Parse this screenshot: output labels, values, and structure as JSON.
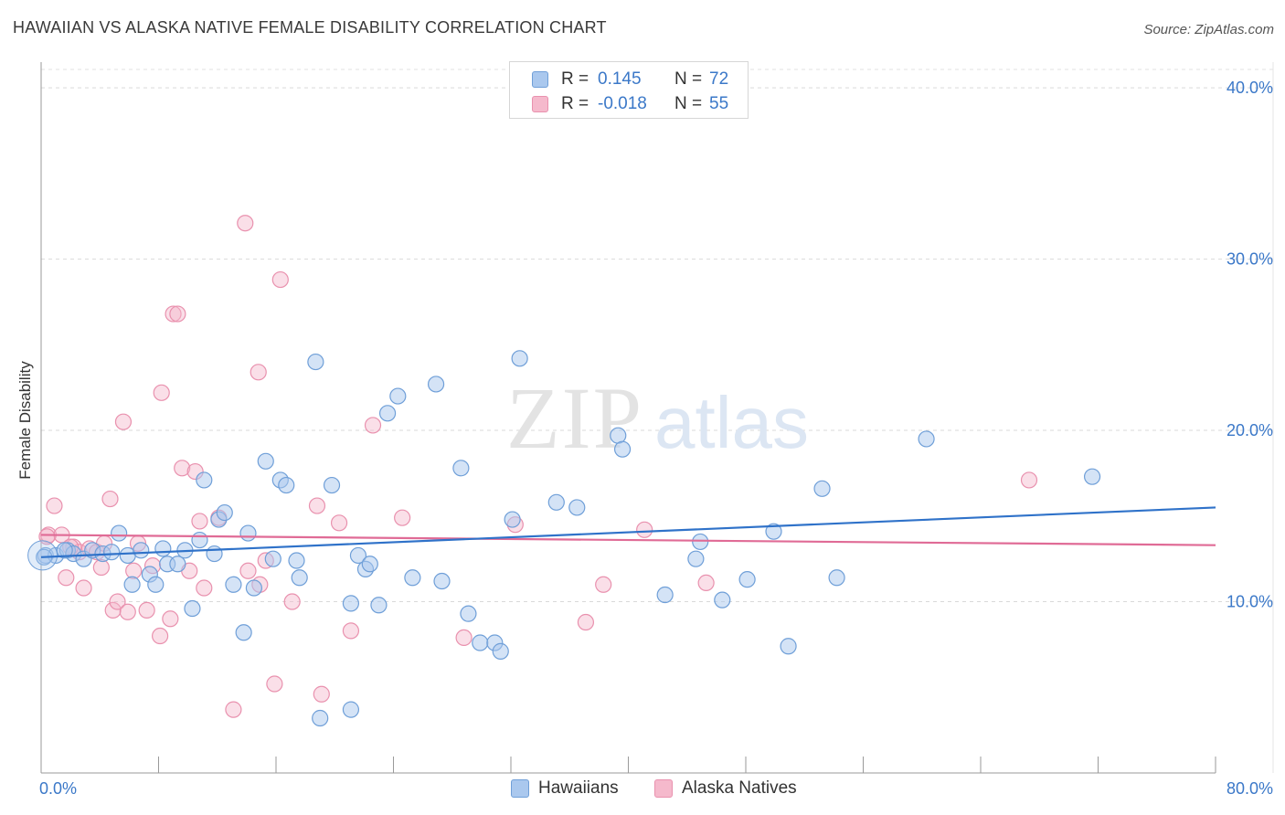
{
  "header": {
    "title": "HAWAIIAN VS ALASKA NATIVE FEMALE DISABILITY CORRELATION CHART",
    "source": "Source: ZipAtlas.com"
  },
  "legend": {
    "rows": [
      {
        "r_label": "R =",
        "r_value": "0.145",
        "n_label": "N =",
        "n_value": "72"
      },
      {
        "r_label": "R =",
        "r_value": "-0.018",
        "n_label": "N =",
        "n_value": "55"
      }
    ]
  },
  "bottom_legend": {
    "series1": "Hawaiians",
    "series2": "Alaska Natives"
  },
  "watermark": {
    "part1": "ZIP",
    "part2": "atlas"
  },
  "colors": {
    "series1_fill": "#aac8ee",
    "series1_stroke": "#6f9fd8",
    "series1_line": "#2f72c9",
    "series2_fill": "#f5b9cc",
    "series2_stroke": "#e991ae",
    "series2_line": "#e06b96",
    "tick_label": "#3b78c8"
  },
  "chart_data": {
    "type": "scatter",
    "title": "HAWAIIAN VS ALASKA NATIVE FEMALE DISABILITY CORRELATION CHART",
    "xlabel": "",
    "ylabel": "Female Disability",
    "xlim": [
      0,
      80
    ],
    "ylim": [
      0,
      41.5
    ],
    "x_tick_labels": [
      "0.0%",
      "80.0%"
    ],
    "y_ticks": [
      10,
      20,
      30,
      40
    ],
    "y_tick_labels": [
      "10.0%",
      "20.0%",
      "30.0%",
      "40.0%"
    ],
    "grid": "horizontal dashed",
    "legend_placement": "top-center",
    "series": [
      {
        "name": "Hawaiians",
        "r": 0.145,
        "n": 72,
        "trend": [
          [
            0,
            12.6
          ],
          [
            80,
            15.5
          ]
        ],
        "points": [
          [
            0.3,
            12.7
          ],
          [
            1.0,
            12.7
          ],
          [
            1.8,
            13.0
          ],
          [
            2.2,
            12.8
          ],
          [
            2.9,
            12.5
          ],
          [
            3.5,
            13.0
          ],
          [
            4.2,
            12.8
          ],
          [
            4.8,
            12.9
          ],
          [
            5.3,
            14.0
          ],
          [
            5.9,
            12.7
          ],
          [
            6.2,
            11.0
          ],
          [
            6.8,
            13.0
          ],
          [
            7.4,
            11.6
          ],
          [
            7.8,
            11.0
          ],
          [
            8.3,
            13.1
          ],
          [
            8.6,
            12.2
          ],
          [
            9.3,
            12.2
          ],
          [
            9.8,
            13.0
          ],
          [
            10.3,
            9.6
          ],
          [
            10.8,
            13.6
          ],
          [
            11.1,
            17.1
          ],
          [
            11.8,
            12.8
          ],
          [
            12.1,
            14.8
          ],
          [
            12.5,
            15.2
          ],
          [
            13.1,
            11.0
          ],
          [
            13.8,
            8.2
          ],
          [
            14.1,
            14.0
          ],
          [
            14.5,
            10.8
          ],
          [
            15.3,
            18.2
          ],
          [
            15.8,
            12.5
          ],
          [
            16.3,
            17.1
          ],
          [
            16.7,
            16.8
          ],
          [
            17.4,
            12.4
          ],
          [
            17.6,
            11.4
          ],
          [
            18.7,
            24.0
          ],
          [
            19.0,
            3.2
          ],
          [
            19.8,
            16.8
          ],
          [
            21.1,
            9.9
          ],
          [
            21.1,
            3.7
          ],
          [
            21.6,
            12.7
          ],
          [
            22.1,
            11.9
          ],
          [
            22.4,
            12.2
          ],
          [
            23.0,
            9.8
          ],
          [
            23.6,
            21.0
          ],
          [
            24.3,
            22.0
          ],
          [
            25.3,
            11.4
          ],
          [
            26.9,
            22.7
          ],
          [
            27.3,
            11.2
          ],
          [
            28.6,
            17.8
          ],
          [
            29.1,
            9.3
          ],
          [
            29.9,
            7.6
          ],
          [
            30.9,
            7.6
          ],
          [
            31.3,
            7.1
          ],
          [
            32.1,
            14.8
          ],
          [
            32.6,
            24.2
          ],
          [
            35.1,
            15.8
          ],
          [
            36.5,
            15.5
          ],
          [
            39.3,
            19.7
          ],
          [
            39.6,
            18.9
          ],
          [
            42.5,
            10.4
          ],
          [
            44.6,
            12.5
          ],
          [
            44.9,
            13.5
          ],
          [
            46.4,
            10.1
          ],
          [
            48.1,
            11.3
          ],
          [
            49.9,
            14.1
          ],
          [
            50.9,
            7.4
          ],
          [
            53.2,
            16.6
          ],
          [
            54.2,
            11.4
          ],
          [
            60.3,
            19.5
          ],
          [
            71.6,
            17.3
          ],
          [
            0.2,
            12.6
          ],
          [
            1.6,
            13.0
          ]
        ]
      },
      {
        "name": "Alaska Natives",
        "r": -0.018,
        "n": 55,
        "trend": [
          [
            0,
            13.9
          ],
          [
            80,
            13.3
          ]
        ],
        "points": [
          [
            0.5,
            13.9
          ],
          [
            0.9,
            15.6
          ],
          [
            1.4,
            13.9
          ],
          [
            1.7,
            11.4
          ],
          [
            2.2,
            13.2
          ],
          [
            2.6,
            12.9
          ],
          [
            2.9,
            10.8
          ],
          [
            3.3,
            13.1
          ],
          [
            3.8,
            12.9
          ],
          [
            4.1,
            12.0
          ],
          [
            4.3,
            13.4
          ],
          [
            4.7,
            16.0
          ],
          [
            4.9,
            9.5
          ],
          [
            5.2,
            10.0
          ],
          [
            5.6,
            20.5
          ],
          [
            5.9,
            9.4
          ],
          [
            6.3,
            11.8
          ],
          [
            6.6,
            13.4
          ],
          [
            7.2,
            9.5
          ],
          [
            7.6,
            12.1
          ],
          [
            8.1,
            8.0
          ],
          [
            8.2,
            22.2
          ],
          [
            8.8,
            9.0
          ],
          [
            9.0,
            26.8
          ],
          [
            9.3,
            26.8
          ],
          [
            9.6,
            17.8
          ],
          [
            10.1,
            11.8
          ],
          [
            10.5,
            17.6
          ],
          [
            10.8,
            14.7
          ],
          [
            11.1,
            10.8
          ],
          [
            12.1,
            14.9
          ],
          [
            13.1,
            3.7
          ],
          [
            13.9,
            32.1
          ],
          [
            14.1,
            11.8
          ],
          [
            14.8,
            23.4
          ],
          [
            14.9,
            11.0
          ],
          [
            15.3,
            12.4
          ],
          [
            15.9,
            5.2
          ],
          [
            16.3,
            28.8
          ],
          [
            17.1,
            10.0
          ],
          [
            18.8,
            15.6
          ],
          [
            19.1,
            4.6
          ],
          [
            20.3,
            14.6
          ],
          [
            21.1,
            8.3
          ],
          [
            22.6,
            20.3
          ],
          [
            24.6,
            14.9
          ],
          [
            28.8,
            7.9
          ],
          [
            32.3,
            14.5
          ],
          [
            37.1,
            8.8
          ],
          [
            38.3,
            11.0
          ],
          [
            41.1,
            14.2
          ],
          [
            45.3,
            11.1
          ],
          [
            67.3,
            17.1
          ],
          [
            0.4,
            13.8
          ],
          [
            2.0,
            13.2
          ]
        ]
      }
    ]
  }
}
